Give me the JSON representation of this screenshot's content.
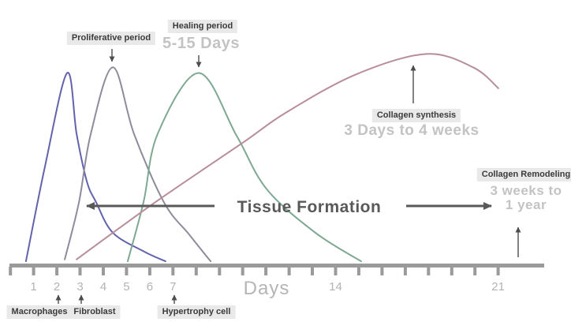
{
  "labels": {
    "proliferative_period": "Proliferative period",
    "healing_period": "Healing period",
    "healing_range": "5-15 Days",
    "collagen_synthesis": "Collagen synthesis",
    "collagen_synthesis_range": "3 Days to 4 weeks",
    "collagen_remodeling": "Collagen Remodeling",
    "collagen_remodeling_range_line1": "3 weeks to",
    "collagen_remodeling_range_line2": "1 year",
    "tissue_formation": "Tissue Formation",
    "macrophages": "Macrophages",
    "fibroblast": "Fibroblast",
    "hypertrophy_cell": "Hypertrophy cell",
    "axis_label": "Days"
  },
  "colors": {
    "macrophages_curve": "#6363ad",
    "fibroblast_curve": "#8c8c9c",
    "hypertrophy_curve": "#7fa893",
    "collagen_curve": "#b88d9b",
    "axis": "#9a9a9a",
    "callout_bg": "#e9e9e9",
    "callout_text": "#3b3b3b",
    "muted_text": "#c3c3c3",
    "dark_text": "#595959"
  },
  "chart_data": {
    "type": "line",
    "title": "",
    "xlabel": "Days",
    "ylabel": "",
    "x_range_days": [
      0,
      23
    ],
    "y_scale": "relative activity 0-1 (no y axis shown)",
    "grid": false,
    "legend": "none - series identified by arrow callouts",
    "axis_ticks": {
      "days": [
        0,
        1,
        2,
        3,
        4,
        5,
        6,
        7,
        8,
        9,
        10,
        11,
        12,
        13,
        14,
        15,
        16,
        17,
        18,
        19,
        20,
        21
      ],
      "labeled": [
        {
          "day": 1,
          "text": "1"
        },
        {
          "day": 2,
          "text": "2"
        },
        {
          "day": 3,
          "text": "3"
        },
        {
          "day": 4,
          "text": "4"
        },
        {
          "day": 5,
          "text": "5"
        },
        {
          "day": 6,
          "text": "6"
        },
        {
          "day": 7,
          "text": "7"
        },
        {
          "day": 14,
          "text": "14"
        },
        {
          "day": 21,
          "text": "21"
        }
      ]
    },
    "series": [
      {
        "name": "Macrophages",
        "color": "#6363ad",
        "points": [
          [
            0.67,
            0.01
          ],
          [
            1.49,
            0.51
          ],
          [
            2.44,
            1.0
          ],
          [
            2.85,
            0.68
          ],
          [
            3.29,
            0.43
          ],
          [
            3.69,
            0.32
          ],
          [
            4.41,
            0.16
          ],
          [
            5.77,
            0.06
          ],
          [
            6.68,
            0.01
          ]
        ]
      },
      {
        "name": "Fibroblast",
        "color": "#8c8c9c",
        "points": [
          [
            2.34,
            0.02
          ],
          [
            2.95,
            0.32
          ],
          [
            3.46,
            0.68
          ],
          [
            4.41,
            1.03
          ],
          [
            5.32,
            0.68
          ],
          [
            6.61,
            0.32
          ],
          [
            7.7,
            0.15
          ],
          [
            8.62,
            0.01
          ]
        ]
      },
      {
        "name": "Hypertrophy cell",
        "color": "#7fa893",
        "points": [
          [
            5.05,
            0.01
          ],
          [
            5.73,
            0.32
          ],
          [
            6.34,
            0.68
          ],
          [
            8.11,
            1.0
          ],
          [
            9.74,
            0.67
          ],
          [
            11.03,
            0.39
          ],
          [
            13.13,
            0.16
          ],
          [
            15.1,
            0.01
          ]
        ]
      },
      {
        "name": "Collagen synthesis",
        "color": "#b88d9b",
        "points": [
          [
            2.85,
            0.02
          ],
          [
            4.64,
            0.18
          ],
          [
            6.58,
            0.35
          ],
          [
            10.08,
            0.64
          ],
          [
            11.84,
            0.79
          ],
          [
            14.83,
            0.99
          ],
          [
            17.89,
            1.1
          ],
          [
            19.92,
            1.03
          ],
          [
            21.01,
            0.92
          ]
        ]
      }
    ],
    "annotations": [
      {
        "text": "Proliferative period",
        "points_to": "Fibroblast peak (~day 4)"
      },
      {
        "text": "Healing period",
        "subtitle": "5-15 Days",
        "points_to": "Hypertrophy cell peak (~day 8)"
      },
      {
        "text": "Collagen synthesis",
        "subtitle": "3 Days to 4 weeks",
        "points_to": "Collagen synthesis peak (~day 18)"
      },
      {
        "text": "Collagen Remodeling",
        "subtitle": "3 weeks to 1 year",
        "points_to": "timeline beyond day 21"
      },
      {
        "text": "Tissue Formation",
        "type": "double-headed horizontal arrow span"
      },
      {
        "text": "Macrophages",
        "points_to": "day 2 tick"
      },
      {
        "text": "Fibroblast",
        "points_to": "day 3 tick"
      },
      {
        "text": "Hypertrophy cell",
        "points_to": "day 7 tick"
      }
    ]
  }
}
